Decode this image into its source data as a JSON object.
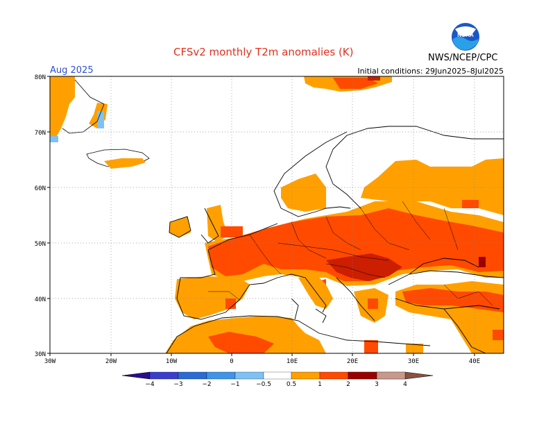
{
  "title": "CFSv2 monthly T2m anomalies (K)",
  "agency": "NWS/NCEP/CPC",
  "logo_text": "NOAA",
  "valid_month": "Aug 2025",
  "initial_conditions": "Initial conditions: 29Jun2025–8Jul2025",
  "axes": {
    "lat_labels": [
      "80N",
      "70N",
      "60N",
      "50N",
      "40N",
      "30N"
    ],
    "lon_labels": [
      "30W",
      "20W",
      "10W",
      "0",
      "10E",
      "20E",
      "30E",
      "40E"
    ]
  },
  "colorbar": {
    "labels": [
      "−4",
      "−3",
      "−2",
      "−1",
      "−0.5",
      "0.5",
      "1",
      "2",
      "3",
      "4"
    ],
    "colors": [
      "#2a0e8f",
      "#3a3dcc",
      "#2a6bd4",
      "#3f94e8",
      "#7ec2f5",
      "#ffffff",
      "#ffa000",
      "#ff4a00",
      "#cc1e00",
      "#990000",
      "#c8988c",
      "#8c5040"
    ]
  },
  "anomaly_regions": [
    {
      "region": "Greenland east coast",
      "class": "0.5-1"
    },
    {
      "region": "Iceland",
      "class": "0.5-1"
    },
    {
      "region": "Svalbard",
      "class": "1-2"
    },
    {
      "region": "Central Europe",
      "class": "1-2"
    },
    {
      "region": "Balkans",
      "class": "2-3"
    },
    {
      "region": "Iberia",
      "class": "0.5-1"
    },
    {
      "region": "North Africa",
      "class": "0.5-1"
    },
    {
      "region": "Eastern Europe",
      "class": "1-2"
    },
    {
      "region": "Turkey",
      "class": "1-2"
    }
  ]
}
